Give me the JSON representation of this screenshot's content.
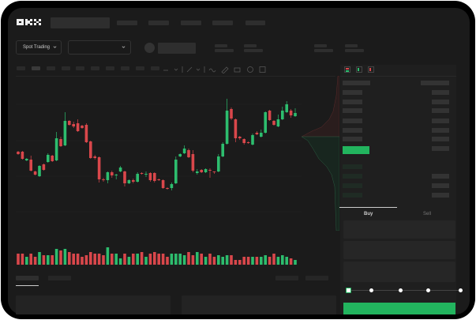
{
  "header": {
    "logo": "OKX"
  },
  "toolbar": {
    "market_select": "Spot Trading",
    "chevron_icon": "chevron-down-icon"
  },
  "order_form": {
    "buy_tab": "Buy",
    "sell_tab": "Sell",
    "leverage_fraction": 0
  },
  "colors": {
    "up": "#2dbd6e",
    "down": "#d9474b",
    "background": "#1b1b1b",
    "accent": "#22b45e"
  },
  "chart_data": {
    "type": "candlestick",
    "candles": [
      [
        118,
        115,
        119,
        114
      ],
      [
        118,
        109,
        119,
        108
      ],
      [
        107,
        109,
        110,
        106
      ],
      [
        108,
        94,
        113,
        93
      ],
      [
        93,
        89,
        94,
        88
      ],
      [
        87,
        100,
        101,
        86
      ],
      [
        102,
        95,
        103,
        94
      ],
      [
        105,
        114,
        116,
        104
      ],
      [
        113,
        106,
        114,
        105
      ],
      [
        107,
        135,
        143,
        106
      ],
      [
        134,
        125,
        137,
        124
      ],
      [
        126,
        157,
        168,
        125
      ],
      [
        157,
        152,
        158,
        151
      ],
      [
        153,
        150,
        156,
        148
      ],
      [
        154,
        144,
        159,
        143
      ],
      [
        151,
        148,
        152,
        147
      ],
      [
        152,
        130,
        154,
        129
      ],
      [
        131,
        110,
        132,
        109
      ],
      [
        112,
        110,
        114,
        108
      ],
      [
        111,
        83,
        112,
        79
      ],
      [
        83,
        82,
        85,
        80
      ],
      [
        82,
        92,
        93,
        78
      ],
      [
        92,
        88,
        94,
        85
      ],
      [
        88,
        89,
        90,
        83
      ],
      [
        93,
        98,
        100,
        92
      ],
      [
        93,
        78,
        94,
        74
      ],
      [
        78,
        82,
        83,
        77
      ],
      [
        82,
        80,
        84,
        78
      ],
      [
        80,
        90,
        92,
        79
      ],
      [
        91,
        90,
        92,
        89
      ],
      [
        89,
        90,
        93,
        86
      ],
      [
        91,
        82,
        92,
        80
      ],
      [
        91,
        81,
        92,
        79
      ],
      [
        83,
        82,
        84,
        81
      ],
      [
        82,
        72,
        83,
        71
      ],
      [
        72,
        71,
        73,
        70
      ],
      [
        72,
        77,
        79,
        69
      ],
      [
        78,
        108,
        112,
        77
      ],
      [
        112,
        115,
        116,
        111
      ],
      [
        116,
        122,
        126,
        115
      ],
      [
        120,
        111,
        122,
        110
      ],
      [
        115,
        94,
        120,
        92
      ],
      [
        91,
        93,
        96,
        89
      ],
      [
        95,
        92,
        96,
        91
      ],
      [
        92,
        96,
        97,
        91
      ],
      [
        95,
        94,
        97,
        85
      ],
      [
        93,
        92,
        93,
        90
      ],
      [
        93,
        112,
        115,
        92
      ],
      [
        112,
        128,
        130,
        111
      ],
      [
        128,
        170,
        185,
        127
      ],
      [
        172,
        160,
        174,
        158
      ],
      [
        159,
        135,
        160,
        130
      ],
      [
        137,
        135,
        138,
        133
      ],
      [
        134,
        129,
        135,
        127
      ],
      [
        130,
        129,
        131,
        128
      ],
      [
        127,
        139,
        141,
        126
      ],
      [
        142,
        140,
        144,
        139
      ],
      [
        137,
        142,
        146,
        136
      ],
      [
        142,
        168,
        169,
        141
      ],
      [
        170,
        158,
        171,
        157
      ],
      [
        157,
        152,
        158,
        151
      ],
      [
        150,
        159,
        165,
        149
      ],
      [
        159,
        170,
        175,
        158
      ],
      [
        168,
        178,
        182,
        167
      ],
      [
        170,
        164,
        172,
        161
      ],
      [
        163,
        167,
        173,
        162
      ]
    ],
    "candle_format": [
      "open",
      "close",
      "high",
      "low"
    ],
    "volume": [
      7,
      7,
      5,
      7,
      5,
      8,
      6,
      6,
      6,
      10,
      9,
      10,
      8,
      7,
      7,
      5,
      6,
      8,
      7,
      7,
      6,
      11,
      7,
      7,
      4,
      7,
      5,
      7,
      7,
      8,
      5,
      7,
      8,
      7,
      7,
      5,
      7,
      7,
      7,
      6,
      8,
      6,
      8,
      7,
      5,
      7,
      5,
      6,
      5,
      6,
      6,
      3,
      3,
      5,
      5,
      5,
      5,
      5,
      6,
      5,
      7,
      5,
      6,
      5,
      4,
      3
    ],
    "grid": true
  }
}
